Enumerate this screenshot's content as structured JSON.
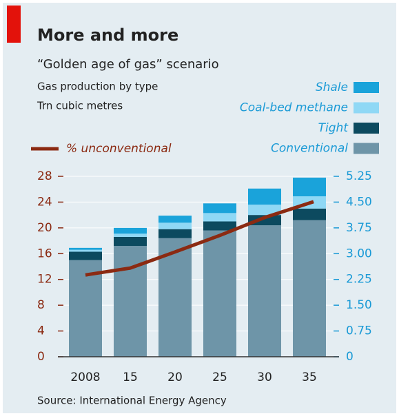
{
  "chart_data": {
    "type": "bar",
    "stacked": true,
    "title": "More and more",
    "subtitle": "“Golden age of gas” scenario",
    "ylabel": "Gas production by type",
    "yunit": "Trn cubic metres",
    "source": "Source: International Energy Agency",
    "categories": [
      "2008",
      "15",
      "20",
      "25",
      "30",
      "35"
    ],
    "series": [
      {
        "name": "Conventional",
        "type": "bar",
        "color": "#6e95a8",
        "values": [
          15.0,
          17.2,
          18.4,
          19.6,
          20.4,
          21.2
        ]
      },
      {
        "name": "Tight",
        "type": "bar",
        "color": "#0c4a5f",
        "values": [
          1.3,
          1.4,
          1.4,
          1.4,
          1.6,
          1.8
        ]
      },
      {
        "name": "Coal-bed methane",
        "type": "bar",
        "color": "#8fd8f5",
        "values": [
          0.3,
          0.5,
          1.0,
          1.3,
          1.6,
          1.9
        ]
      },
      {
        "name": "Shale",
        "type": "bar",
        "color": "#1aa3da",
        "values": [
          0.3,
          0.9,
          1.1,
          1.5,
          2.5,
          2.9
        ]
      },
      {
        "name": "% unconventional",
        "type": "line",
        "axis": "y2",
        "color": "#8b2a12",
        "values": [
          2.38,
          2.58,
          3.05,
          3.53,
          4.05,
          4.51
        ]
      }
    ],
    "ylim": [
      0,
      28
    ],
    "yticks": [
      0,
      4,
      8,
      12,
      16,
      20,
      24,
      28
    ],
    "y2lim": [
      0,
      5.25
    ],
    "y2ticks": [
      0,
      0.75,
      {
        "value": 1.5,
        "label": "1.50"
      },
      2.25,
      {
        "value": 3,
        "label": "3.00"
      },
      3.75,
      {
        "value": 4.5,
        "label": "4.50"
      },
      5.25
    ],
    "grid": true
  }
}
